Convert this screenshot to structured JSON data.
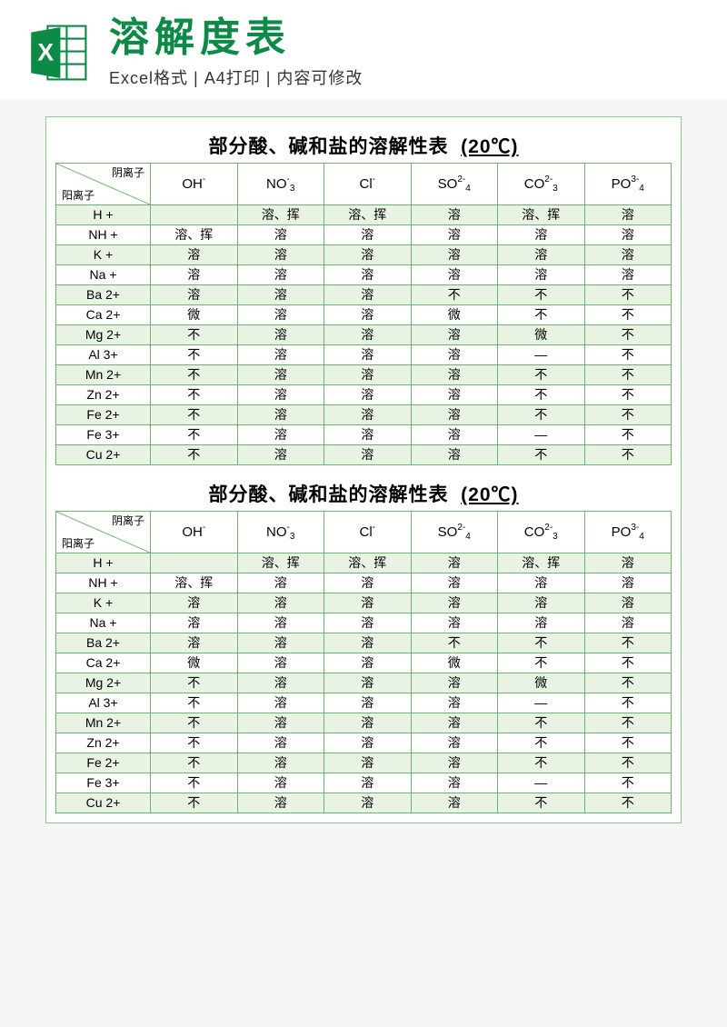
{
  "header": {
    "main_title": "溶解度表",
    "sub_title": "Excel格式 | A4打印 | 内容可修改"
  },
  "colors": {
    "accent": "#0e8a47",
    "border": "#6fb36f",
    "row_alt": "#e8f3e3",
    "row_base": "#ffffff",
    "page_bg": "#f5f5f5"
  },
  "table": {
    "title_prefix": "部分酸、碱和盐的溶解性表",
    "title_temp": "(20℃)",
    "diag_top": "阴离子",
    "diag_bot": "阳离子",
    "anions": [
      {
        "label": "OH",
        "sup": "-",
        "sub": ""
      },
      {
        "label": "NO",
        "sup": "-",
        "sub": "3"
      },
      {
        "label": "Cl",
        "sup": "-",
        "sub": ""
      },
      {
        "label": "SO",
        "sup": "2-",
        "sub": "4"
      },
      {
        "label": "CO",
        "sup": "2-",
        "sub": "3"
      },
      {
        "label": "PO",
        "sup": "3-",
        "sub": "4"
      }
    ],
    "cations": [
      "H +",
      "NH +",
      "K +",
      "Na +",
      "Ba 2+",
      "Ca 2+",
      "Mg 2+",
      "Al 3+",
      "Mn 2+",
      "Zn 2+",
      "Fe 2+",
      "Fe 3+",
      "Cu 2+"
    ],
    "rows": [
      [
        "",
        "溶、挥",
        "溶、挥",
        "溶",
        "溶、挥",
        "溶"
      ],
      [
        "溶、挥",
        "溶",
        "溶",
        "溶",
        "溶",
        "溶"
      ],
      [
        "溶",
        "溶",
        "溶",
        "溶",
        "溶",
        "溶"
      ],
      [
        "溶",
        "溶",
        "溶",
        "溶",
        "溶",
        "溶"
      ],
      [
        "溶",
        "溶",
        "溶",
        "不",
        "不",
        "不"
      ],
      [
        "微",
        "溶",
        "溶",
        "微",
        "不",
        "不"
      ],
      [
        "不",
        "溶",
        "溶",
        "溶",
        "微",
        "不"
      ],
      [
        "不",
        "溶",
        "溶",
        "溶",
        "—",
        "不"
      ],
      [
        "不",
        "溶",
        "溶",
        "溶",
        "不",
        "不"
      ],
      [
        "不",
        "溶",
        "溶",
        "溶",
        "不",
        "不"
      ],
      [
        "不",
        "溶",
        "溶",
        "溶",
        "不",
        "不"
      ],
      [
        "不",
        "溶",
        "溶",
        "溶",
        "—",
        "不"
      ],
      [
        "不",
        "溶",
        "溶",
        "溶",
        "不",
        "不"
      ]
    ]
  }
}
